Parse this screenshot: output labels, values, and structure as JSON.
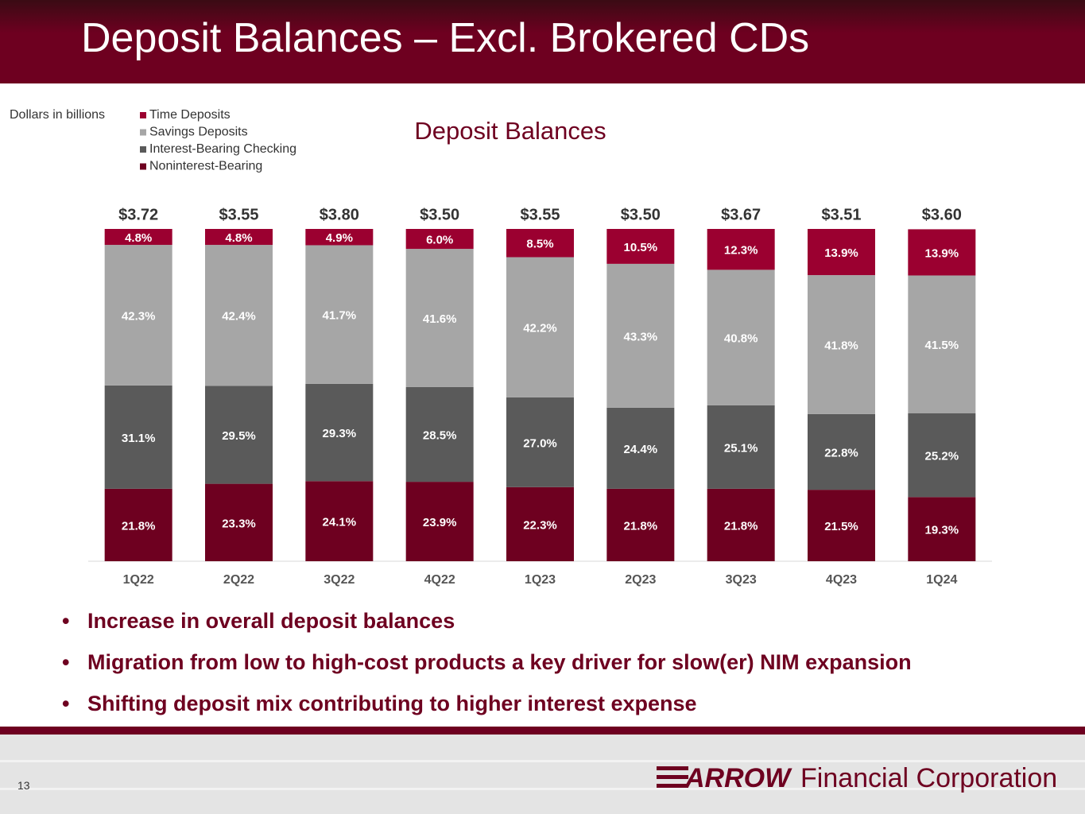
{
  "page_title": "Deposit Balances – Excl. Brokered CDs",
  "chart_data": {
    "type": "bar",
    "stacked": true,
    "title": "Deposit Balances",
    "note": "Dollars in billions",
    "categories": [
      "1Q22",
      "2Q22",
      "3Q22",
      "4Q22",
      "1Q23",
      "2Q23",
      "3Q23",
      "4Q23",
      "1Q24"
    ],
    "ylim": [
      0,
      100
    ],
    "series": [
      {
        "name": "Time Deposits",
        "color": "#9b0030",
        "values": [
          4.8,
          4.8,
          4.9,
          6.0,
          8.5,
          10.5,
          12.3,
          13.9,
          13.9
        ],
        "value_labels": [
          "4.8%",
          "4.8%",
          "4.9%",
          "6.0%",
          "8.5%",
          "10.5%",
          "12.3%",
          "13.9%",
          "13.9%"
        ]
      },
      {
        "name": "Savings Deposits",
        "color": "#a6a6a6",
        "values": [
          42.3,
          42.4,
          41.7,
          41.6,
          42.2,
          43.3,
          40.8,
          41.8,
          41.5
        ],
        "value_labels": [
          "42.3%",
          "42.4%",
          "41.7%",
          "41.6%",
          "42.2%",
          "43.3%",
          "40.8%",
          "41.8%",
          "41.5%"
        ]
      },
      {
        "name": "Interest-Bearing Checking",
        "color": "#5a5a5a",
        "values": [
          31.1,
          29.5,
          29.3,
          28.5,
          27.0,
          24.4,
          25.1,
          22.8,
          25.2
        ],
        "value_labels": [
          "31.1%",
          "29.5%",
          "29.3%",
          "28.5%",
          "27.0%",
          "24.4%",
          "25.1%",
          "22.8%",
          "25.2%"
        ]
      },
      {
        "name": "Noninterest-Bearing",
        "color": "#6e0020",
        "values": [
          21.8,
          23.3,
          24.1,
          23.9,
          22.3,
          21.8,
          21.8,
          21.5,
          19.3
        ],
        "value_labels": [
          "21.8%",
          "23.3%",
          "24.1%",
          "23.9%",
          "22.3%",
          "21.8%",
          "21.8%",
          "21.5%",
          "19.3%"
        ]
      }
    ],
    "totals": {
      "values": [
        3.72,
        3.55,
        3.8,
        3.5,
        3.55,
        3.5,
        3.67,
        3.51,
        3.6
      ],
      "value_labels": [
        "$3.72",
        "$3.55",
        "$3.80",
        "$3.50",
        "$3.55",
        "$3.50",
        "$3.67",
        "$3.51",
        "$3.60"
      ]
    }
  },
  "bullets": [
    "Increase in overall deposit balances",
    "Migration from low to high-cost products a key driver for slow(er) NIM expansion",
    "Shifting deposit mix contributing to higher interest expense"
  ],
  "footer": {
    "page": "13",
    "logo_brand": "ARROW",
    "logo_text": "Financial Corporation"
  }
}
